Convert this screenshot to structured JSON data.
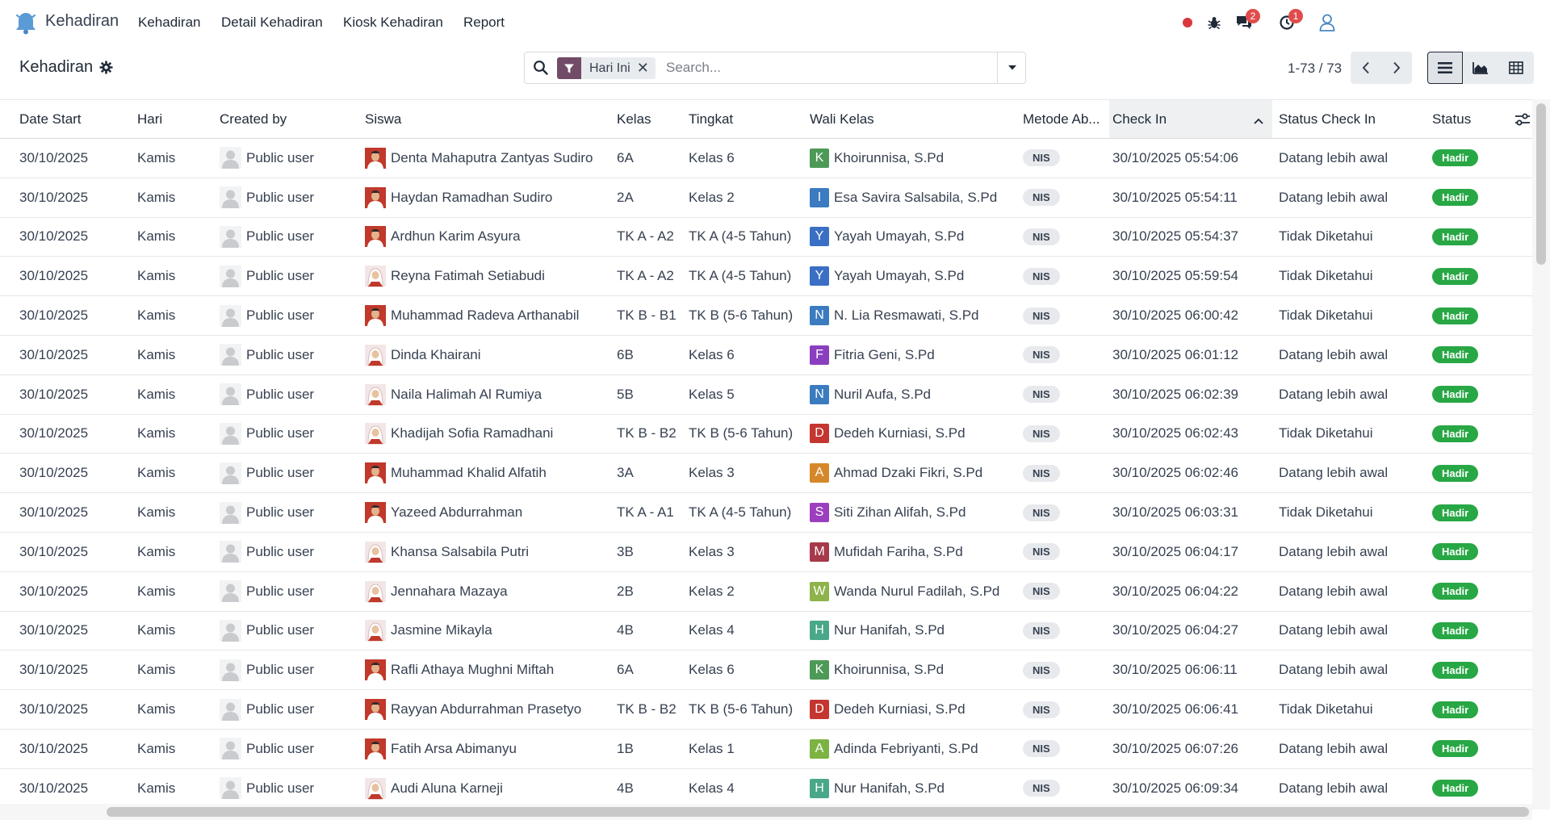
{
  "app": {
    "name": "Kehadiran",
    "menu": [
      "Kehadiran",
      "Detail Kehadiran",
      "Kiosk Kehadiran",
      "Report"
    ],
    "accent_color": "#714b67",
    "status_dot_color": "#d9363e"
  },
  "systray": {
    "chat_badge": "2",
    "activity_badge": "1",
    "icons": [
      "record-dot-icon",
      "debug-icon",
      "chat-icon",
      "activity-icon",
      "user-icon"
    ]
  },
  "control_panel": {
    "breadcrumb": "Kehadiran",
    "facet_label": "Hari Ini",
    "search_placeholder": "Search...",
    "pager_value": "1-73 / 73"
  },
  "table": {
    "columns": [
      "Date Start",
      "Hari",
      "Created by",
      "Siswa",
      "Kelas",
      "Tingkat",
      "Wali Kelas",
      "Metode Ab...",
      "Check In",
      "Status Check In",
      "Status"
    ],
    "sorted_column": "Check In",
    "rows": [
      {
        "date": "30/10/2025",
        "hari": "Kamis",
        "created_by": "Public user",
        "siswa": "Denta Mahaputra Zantyas Sudiro",
        "av": "boy",
        "kelas": "6A",
        "tingkat": "Kelas 6",
        "wali": "Khoirunnisa, S.Pd",
        "wali_initial": "K",
        "wali_color": "#4d9a57",
        "metode": "NIS",
        "check_in": "30/10/2025 05:54:06",
        "status_ci": "Datang lebih awal",
        "status": "Hadir"
      },
      {
        "date": "30/10/2025",
        "hari": "Kamis",
        "created_by": "Public user",
        "siswa": "Haydan Ramadhan Sudiro",
        "av": "boy",
        "kelas": "2A",
        "tingkat": "Kelas 2",
        "wali": "Esa Savira Salsabila, S.Pd",
        "wali_initial": "I",
        "wali_color": "#3b7bbf",
        "metode": "NIS",
        "check_in": "30/10/2025 05:54:11",
        "status_ci": "Datang lebih awal",
        "status": "Hadir"
      },
      {
        "date": "30/10/2025",
        "hari": "Kamis",
        "created_by": "Public user",
        "siswa": "Ardhun Karim Asyura",
        "av": "boy",
        "kelas": "TK A - A2",
        "tingkat": "TK A (4-5 Tahun)",
        "wali": "Yayah Umayah, S.Pd",
        "wali_initial": "Y",
        "wali_color": "#3a6fc4",
        "metode": "NIS",
        "check_in": "30/10/2025 05:54:37",
        "status_ci": "Tidak Diketahui",
        "status": "Hadir"
      },
      {
        "date": "30/10/2025",
        "hari": "Kamis",
        "created_by": "Public user",
        "siswa": "Reyna Fatimah Setiabudi",
        "av": "girl",
        "kelas": "TK A - A2",
        "tingkat": "TK A (4-5 Tahun)",
        "wali": "Yayah Umayah, S.Pd",
        "wali_initial": "Y",
        "wali_color": "#3a6fc4",
        "metode": "NIS",
        "check_in": "30/10/2025 05:59:54",
        "status_ci": "Tidak Diketahui",
        "status": "Hadir"
      },
      {
        "date": "30/10/2025",
        "hari": "Kamis",
        "created_by": "Public user",
        "siswa": "Muhammad Radeva Arthanabil",
        "av": "boy",
        "kelas": "TK B - B1",
        "tingkat": "TK B (5-6 Tahun)",
        "wali": "N. Lia Resmawati, S.Pd",
        "wali_initial": "N",
        "wali_color": "#3b7bbf",
        "metode": "NIS",
        "check_in": "30/10/2025 06:00:42",
        "status_ci": "Tidak Diketahui",
        "status": "Hadir"
      },
      {
        "date": "30/10/2025",
        "hari": "Kamis",
        "created_by": "Public user",
        "siswa": "Dinda Khairani",
        "av": "girl",
        "kelas": "6B",
        "tingkat": "Kelas 6",
        "wali": "Fitria Geni, S.Pd",
        "wali_initial": "F",
        "wali_color": "#8a3fbf",
        "metode": "NIS",
        "check_in": "30/10/2025 06:01:12",
        "status_ci": "Datang lebih awal",
        "status": "Hadir"
      },
      {
        "date": "30/10/2025",
        "hari": "Kamis",
        "created_by": "Public user",
        "siswa": "Naila Halimah Al Rumiya",
        "av": "girl",
        "kelas": "5B",
        "tingkat": "Kelas 5",
        "wali": "Nuril Aufa, S.Pd",
        "wali_initial": "N",
        "wali_color": "#3b7bbf",
        "metode": "NIS",
        "check_in": "30/10/2025 06:02:39",
        "status_ci": "Datang lebih awal",
        "status": "Hadir"
      },
      {
        "date": "30/10/2025",
        "hari": "Kamis",
        "created_by": "Public user",
        "siswa": "Khadijah Sofia Ramadhani",
        "av": "girl",
        "kelas": "TK B - B2",
        "tingkat": "TK B (5-6 Tahun)",
        "wali": "Dedeh Kurniasi, S.Pd",
        "wali_initial": "D",
        "wali_color": "#c4362f",
        "metode": "NIS",
        "check_in": "30/10/2025 06:02:43",
        "status_ci": "Tidak Diketahui",
        "status": "Hadir"
      },
      {
        "date": "30/10/2025",
        "hari": "Kamis",
        "created_by": "Public user",
        "siswa": "Muhammad Khalid Alfatih",
        "av": "boy",
        "kelas": "3A",
        "tingkat": "Kelas 3",
        "wali": "Ahmad Dzaki Fikri, S.Pd",
        "wali_initial": "A",
        "wali_color": "#d6872a",
        "metode": "NIS",
        "check_in": "30/10/2025 06:02:46",
        "status_ci": "Datang lebih awal",
        "status": "Hadir"
      },
      {
        "date": "30/10/2025",
        "hari": "Kamis",
        "created_by": "Public user",
        "siswa": "Yazeed Abdurrahman",
        "av": "boy",
        "kelas": "TK A - A1",
        "tingkat": "TK A (4-5 Tahun)",
        "wali": "Siti Zihan Alifah, S.Pd",
        "wali_initial": "S",
        "wali_color": "#9c3fbf",
        "metode": "NIS",
        "check_in": "30/10/2025 06:03:31",
        "status_ci": "Tidak Diketahui",
        "status": "Hadir"
      },
      {
        "date": "30/10/2025",
        "hari": "Kamis",
        "created_by": "Public user",
        "siswa": "Khansa Salsabila Putri",
        "av": "girl",
        "kelas": "3B",
        "tingkat": "Kelas 3",
        "wali": "Mufidah Fariha, S.Pd",
        "wali_initial": "M",
        "wali_color": "#a63a4a",
        "metode": "NIS",
        "check_in": "30/10/2025 06:04:17",
        "status_ci": "Datang lebih awal",
        "status": "Hadir"
      },
      {
        "date": "30/10/2025",
        "hari": "Kamis",
        "created_by": "Public user",
        "siswa": "Jennahara Mazaya",
        "av": "girl",
        "kelas": "2B",
        "tingkat": "Kelas 2",
        "wali": "Wanda Nurul Fadilah, S.Pd",
        "wali_initial": "W",
        "wali_color": "#8db34a",
        "metode": "NIS",
        "check_in": "30/10/2025 06:04:22",
        "status_ci": "Datang lebih awal",
        "status": "Hadir"
      },
      {
        "date": "30/10/2025",
        "hari": "Kamis",
        "created_by": "Public user",
        "siswa": "Jasmine Mikayla",
        "av": "girl",
        "kelas": "4B",
        "tingkat": "Kelas 4",
        "wali": "Nur Hanifah, S.Pd",
        "wali_initial": "H",
        "wali_color": "#4aa88a",
        "metode": "NIS",
        "check_in": "30/10/2025 06:04:27",
        "status_ci": "Datang lebih awal",
        "status": "Hadir"
      },
      {
        "date": "30/10/2025",
        "hari": "Kamis",
        "created_by": "Public user",
        "siswa": "Rafli Athaya Mughni Miftah",
        "av": "boy",
        "kelas": "6A",
        "tingkat": "Kelas 6",
        "wali": "Khoirunnisa, S.Pd",
        "wali_initial": "K",
        "wali_color": "#4d9a57",
        "metode": "NIS",
        "check_in": "30/10/2025 06:06:11",
        "status_ci": "Datang lebih awal",
        "status": "Hadir"
      },
      {
        "date": "30/10/2025",
        "hari": "Kamis",
        "created_by": "Public user",
        "siswa": "Rayyan Abdurrahman Prasetyo",
        "av": "boy",
        "kelas": "TK B - B2",
        "tingkat": "TK B (5-6 Tahun)",
        "wali": "Dedeh Kurniasi, S.Pd",
        "wali_initial": "D",
        "wali_color": "#c4362f",
        "metode": "NIS",
        "check_in": "30/10/2025 06:06:41",
        "status_ci": "Tidak Diketahui",
        "status": "Hadir"
      },
      {
        "date": "30/10/2025",
        "hari": "Kamis",
        "created_by": "Public user",
        "siswa": "Fatih Arsa Abimanyu",
        "av": "boy",
        "kelas": "1B",
        "tingkat": "Kelas 1",
        "wali": "Adinda Febriyanti, S.Pd",
        "wali_initial": "A",
        "wali_color": "#7cb342",
        "metode": "NIS",
        "check_in": "30/10/2025 06:07:26",
        "status_ci": "Datang lebih awal",
        "status": "Hadir"
      },
      {
        "date": "30/10/2025",
        "hari": "Kamis",
        "created_by": "Public user",
        "siswa": "Audi Aluna Karneji",
        "av": "girl",
        "kelas": "4B",
        "tingkat": "Kelas 4",
        "wali": "Nur Hanifah, S.Pd",
        "wali_initial": "H",
        "wali_color": "#4aa88a",
        "metode": "NIS",
        "check_in": "30/10/2025 06:09:34",
        "status_ci": "Datang lebih awal",
        "status": "Hadir"
      }
    ]
  }
}
